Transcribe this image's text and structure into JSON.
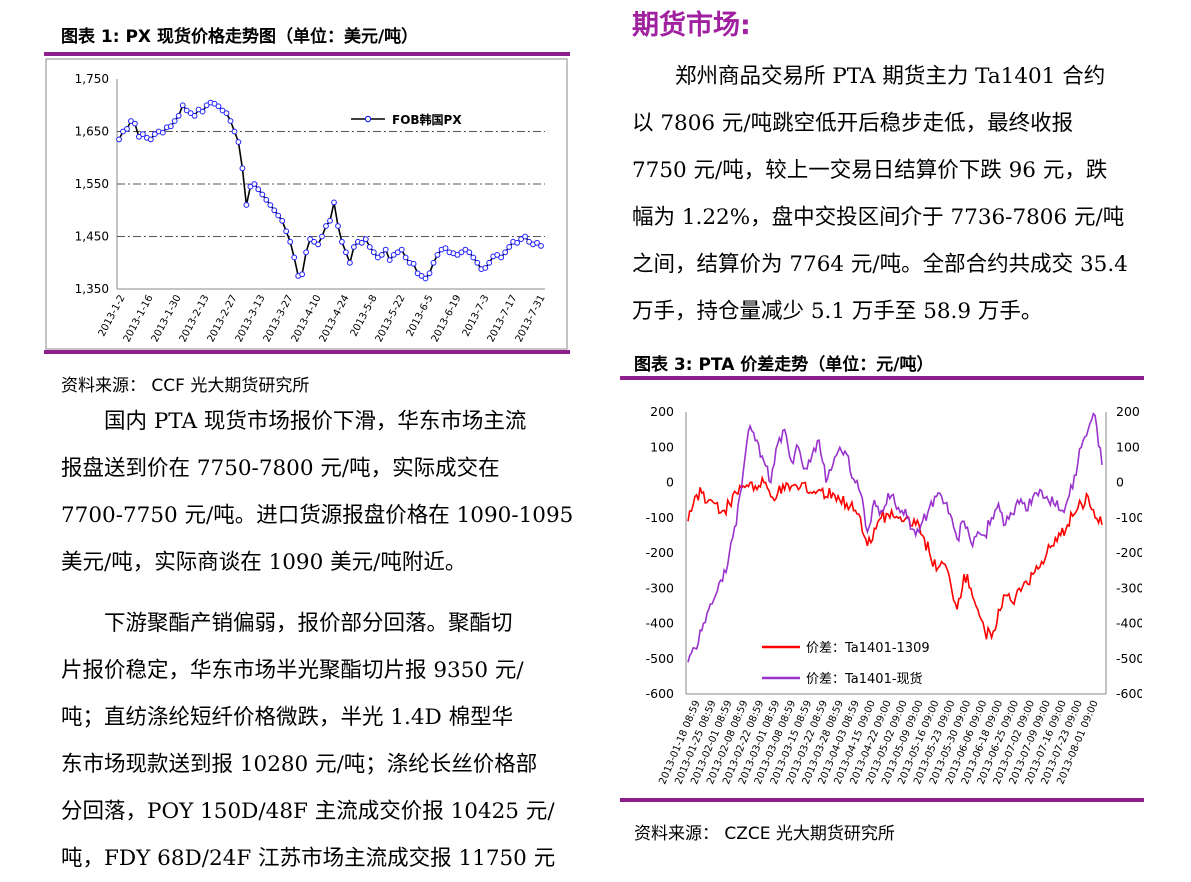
{
  "left": {
    "figure1": {
      "title": "图表 1:  PX 现货价格走势图（单位：美元/吨）",
      "source": "资料来源：  CCF  光大期货研究所"
    },
    "paragraph1_lines": [
      "国内 PTA 现货市场报价下滑，华东市场主流",
      "报盘送到价在 7750-7800 元/吨，实际成交在",
      "7700-7750 元/吨。进口货源报盘价格在 1090-1095",
      "美元/吨，实际商谈在 1090 美元/吨附近。"
    ],
    "paragraph2_lines": [
      "下游聚酯产销偏弱，报价部分回落。聚酯切",
      "片报价稳定，华东市场半光聚酯切片报 9350 元/",
      "吨；直纺涤纶短纤价格微跌，半光 1.4D 棉型华",
      "东市场现款送到报 10280 元/吨；涤纶长丝价格部",
      "分回落，POY 150D/48F 主流成交价报 10425 元/",
      "吨，FDY 68D/24F 江苏市场主流成交报 11750 元"
    ]
  },
  "right": {
    "section_title": "期货市场:",
    "paragraph_lines": [
      "郑州商品交易所 PTA 期货主力 Ta1401 合约",
      "以 7806 元/吨跳空低开后稳步走低，最终收报",
      "7750 元/吨，较上一交易日结算价下跌 96 元，跌",
      "幅为 1.22%，盘中交投区间介于 7736-7806 元/吨",
      "之间，结算价为 7764 元/吨。全部合约共成交 35.4",
      "万手，持仓量减少 5.1 万手至 58.9 万手。"
    ],
    "figure3": {
      "title": "图表 3:  PTA 价差走势（单位：元/吨）",
      "source": "资料来源：  CZCE  光大期货研究所"
    }
  },
  "chart_data": [
    {
      "type": "line",
      "title": "",
      "ylim": [
        1350,
        1750
      ],
      "y_ticks": [
        "1,750",
        "1,650",
        "1,550",
        "1,450",
        "1,350"
      ],
      "x_tick_labels": [
        "2013-1-2",
        "2013-1-16",
        "2013-1-30",
        "2013-2-13",
        "2013-2-27",
        "2013-3-13",
        "2013-3-27",
        "2013-4-10",
        "2013-4-24",
        "2013-5-8",
        "2013-5-22",
        "2013-6-5",
        "2013-6-19",
        "2013-7-3",
        "2013-7-17",
        "2013-7-31"
      ],
      "grid": "horizontal dashed",
      "legend_position": "top-right",
      "series": [
        {
          "name": "FOB韩国PX",
          "color": "#1f1fff",
          "values": [
            1635,
            1650,
            1655,
            1670,
            1665,
            1640,
            1645,
            1638,
            1635,
            1645,
            1650,
            1648,
            1658,
            1660,
            1670,
            1680,
            1700,
            1690,
            1685,
            1680,
            1692,
            1688,
            1700,
            1705,
            1703,
            1698,
            1690,
            1685,
            1670,
            1650,
            1630,
            1580,
            1510,
            1545,
            1550,
            1540,
            1530,
            1520,
            1510,
            1500,
            1490,
            1480,
            1460,
            1440,
            1410,
            1375,
            1378,
            1420,
            1445,
            1440,
            1435,
            1450,
            1470,
            1480,
            1515,
            1470,
            1440,
            1420,
            1400,
            1430,
            1440,
            1438,
            1445,
            1430,
            1420,
            1410,
            1415,
            1425,
            1405,
            1415,
            1420,
            1425,
            1410,
            1400,
            1398,
            1380,
            1375,
            1370,
            1380,
            1400,
            1415,
            1425,
            1428,
            1420,
            1418,
            1415,
            1420,
            1425,
            1420,
            1410,
            1400,
            1388,
            1390,
            1400,
            1412,
            1415,
            1410,
            1420,
            1430,
            1440,
            1438,
            1445,
            1450,
            1440,
            1435,
            1438,
            1432
          ]
        }
      ]
    },
    {
      "type": "line",
      "title": "",
      "ylim": [
        -600,
        200
      ],
      "y_ticks": [
        "200",
        "100",
        "0",
        "-100",
        "-200",
        "-300",
        "-400",
        "-500",
        "-600"
      ],
      "x_tick_labels": [
        "2013-01-18 08:59",
        "2013-01-25 08:59",
        "2013-02-01 08:59",
        "2013-02-08 08:59",
        "2013-02-22 08:59",
        "2013-03-01 08:59",
        "2013-03-08 08:59",
        "2013-03-15 08:59",
        "2013-03-22 08:59",
        "2013-03-28 08:59",
        "2013-04-03 08:59",
        "2013-04-15 09:00",
        "2013-04-22 09:00",
        "2013-05-02 09:00",
        "2013-05-09 09:00",
        "2013-05-16 09:00",
        "2013-05-23 09:00",
        "2013-05-30 09:00",
        "2013-06-06 09:00",
        "2013-06-18 09:00",
        "2013-06-25 09:00",
        "2013-07-02 09:00",
        "2013-07-09 09:00",
        "2013-07-16 09:00",
        "2013-07-23 09:00",
        "2013-08-01 09:00"
      ],
      "legend_position": "bottom-left",
      "series": [
        {
          "name": "价差：Ta1401-1309",
          "color": "#ff0000",
          "values": [
            -110,
            -40,
            -30,
            -50,
            -60,
            -80,
            -60,
            -30,
            -10,
            0,
            -20,
            0,
            -40,
            -30,
            -20,
            -10,
            -20,
            0,
            -30,
            -20,
            -40,
            -30,
            -50,
            -60,
            -80,
            -100,
            -180,
            -130,
            -100,
            -90,
            -100,
            -110,
            -100,
            -120,
            -150,
            -200,
            -250,
            -230,
            -280,
            -360,
            -260,
            -300,
            -360,
            -420,
            -440,
            -360,
            -320,
            -340,
            -300,
            -280,
            -260,
            -240,
            -200,
            -180,
            -150,
            -120,
            -90,
            -60,
            -40,
            -100,
            -120
          ]
        },
        {
          "name": "价差：Ta1401-现货",
          "color": "#9933cc",
          "values": [
            -510,
            -470,
            -420,
            -360,
            -320,
            -280,
            -200,
            -120,
            30,
            160,
            120,
            60,
            0,
            110,
            150,
            60,
            100,
            40,
            80,
            120,
            0,
            50,
            100,
            80,
            10,
            -30,
            -140,
            -50,
            -80,
            -30,
            -60,
            -80,
            -100,
            -150,
            -110,
            -70,
            -40,
            -60,
            -90,
            -160,
            -110,
            -170,
            -140,
            -150,
            -100,
            -60,
            -120,
            -90,
            -60,
            -80,
            -40,
            -20,
            -40,
            -60,
            -80,
            -50,
            20,
            100,
            150,
            190,
            50
          ]
        }
      ]
    }
  ]
}
